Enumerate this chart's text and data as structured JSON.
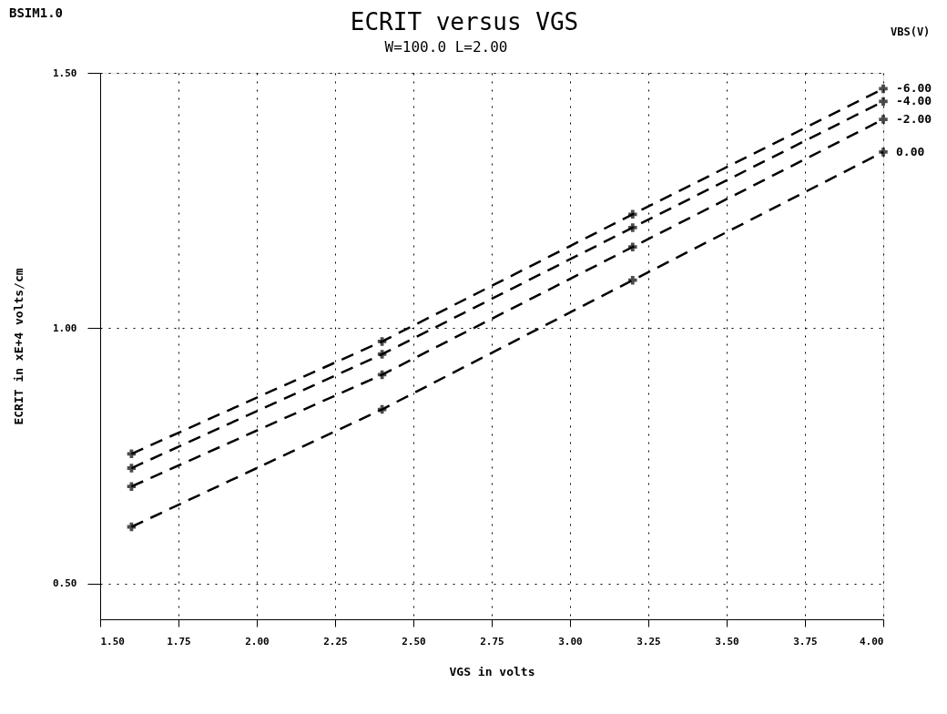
{
  "chart_data": {
    "type": "line",
    "title": "ECRIT versus VGS",
    "subtitle": "W=100.0          L=2.00",
    "xlabel": "VGS in  volts",
    "ylabel": "ECRIT in  xE+4 volts/cm",
    "legend_title": "VBS(V)",
    "annotations": [
      "BSIM1.0"
    ],
    "x": [
      1.6,
      2.4,
      3.2,
      4.0
    ],
    "series": [
      {
        "name": "-6.00",
        "color": "#000000",
        "values": [
          0.754,
          0.974,
          1.223,
          1.469
        ]
      },
      {
        "name": "-4.00",
        "color": "#000000",
        "values": [
          0.726,
          0.949,
          1.197,
          1.444
        ]
      },
      {
        "name": "-2.00",
        "color": "#000000",
        "values": [
          0.69,
          0.909,
          1.159,
          1.409
        ]
      },
      {
        "name": "0.00",
        "color": "#000000",
        "values": [
          0.611,
          0.841,
          1.094,
          1.345
        ]
      }
    ],
    "xlim": [
      1.5,
      4.0
    ],
    "xticks": [
      {
        "value": 1.5,
        "label": "1.50"
      },
      {
        "value": 1.75,
        "label": "1.75"
      },
      {
        "value": 2.0,
        "label": "2.00"
      },
      {
        "value": 2.25,
        "label": "2.25"
      },
      {
        "value": 2.5,
        "label": "2.50"
      },
      {
        "value": 2.75,
        "label": "2.75"
      },
      {
        "value": 3.0,
        "label": "3.00"
      },
      {
        "value": 3.25,
        "label": "3.25"
      },
      {
        "value": 3.5,
        "label": "3.50"
      },
      {
        "value": 3.75,
        "label": "3.75"
      },
      {
        "value": 4.0,
        "label": "4.00"
      }
    ],
    "ylim": [
      0.43,
      1.5
    ],
    "yticks": [
      {
        "value": 0.5,
        "label": "0.50"
      },
      {
        "value": 1.0,
        "label": "1.00"
      },
      {
        "value": 1.5,
        "label": "1.50"
      }
    ],
    "grid": true,
    "legend": false,
    "marker": "cross",
    "line_style": "dashed"
  }
}
